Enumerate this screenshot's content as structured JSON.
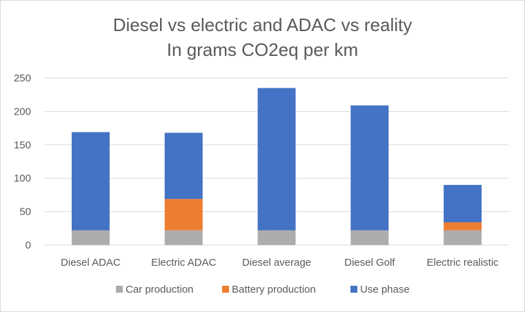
{
  "chart_data": {
    "type": "bar",
    "stacked": true,
    "title": "Diesel vs electric and ADAC vs reality",
    "subtitle": "In grams CO2eq per km",
    "categories": [
      "Diesel ADAC",
      "Electric ADAC",
      "Diesel average",
      "Diesel Golf",
      "Electric realistic"
    ],
    "series": [
      {
        "name": "Car production",
        "values": [
          22,
          22,
          22,
          22,
          22
        ],
        "color": "#a5a5a5",
        "pattern": "hatched"
      },
      {
        "name": "Battery production",
        "values": [
          0,
          47,
          0,
          0,
          12
        ],
        "color": "#ed7d31"
      },
      {
        "name": "Use phase",
        "values": [
          147,
          99,
          213,
          187,
          56
        ],
        "color": "#4472c4"
      }
    ],
    "yticks": [
      "0",
      "50",
      "100",
      "150",
      "200",
      "250"
    ],
    "ylim": [
      0,
      250
    ],
    "grid": true,
    "legend_position": "bottom"
  }
}
